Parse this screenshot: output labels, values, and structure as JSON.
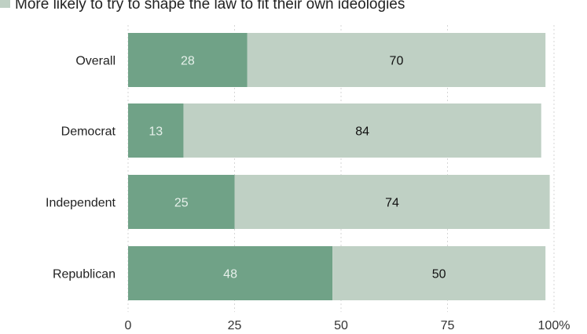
{
  "chart_data": {
    "type": "bar",
    "orientation": "horizontal",
    "stacked": true,
    "categories": [
      "Overall",
      "Democrat",
      "Independent",
      "Republican"
    ],
    "series": [
      {
        "values": [
          28,
          13,
          25,
          48
        ],
        "color": "#70a287",
        "label_color": "#e6f0ea"
      },
      {
        "name": "More likely to try to shape the law to fit their own ideologies",
        "values": [
          70,
          84,
          74,
          50
        ],
        "color": "#bfd0c4",
        "label_color": "#111111"
      }
    ],
    "xlim": [
      0,
      100
    ],
    "xticks": [
      "0",
      "25",
      "50",
      "75",
      "100%"
    ],
    "grid": true,
    "legend_position": "top"
  }
}
